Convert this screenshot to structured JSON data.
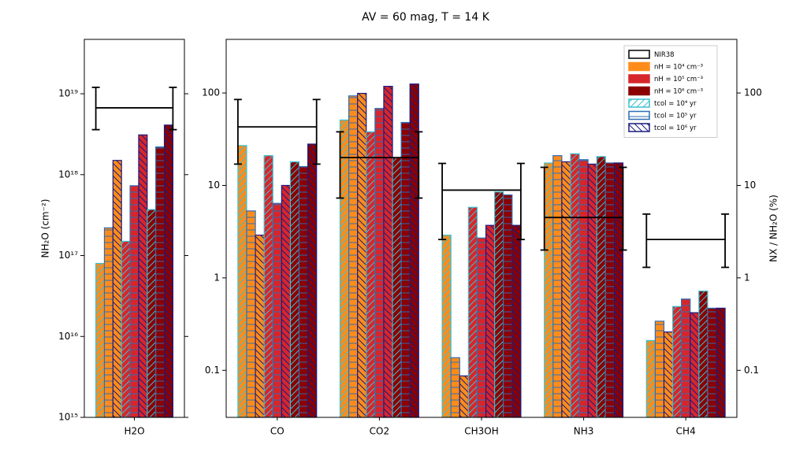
{
  "chart_data": [
    {
      "type": "bar",
      "title": "AV = 60 mag,  T = 14 K",
      "ylabel": "NH₂O  (cm⁻²)",
      "yscale": "log",
      "categories": [
        "H2O"
      ],
      "ylim": [
        1000000000000000.0,
        4.7e+19
      ],
      "yticks": [
        {
          "value": 1000000000000000.0,
          "label": "10¹⁵"
        },
        {
          "value": 1e+16,
          "label": "10¹⁶"
        },
        {
          "value": 1e+17,
          "label": "10¹⁷"
        },
        {
          "value": 1e+18,
          "label": "10¹⁸"
        },
        {
          "value": 1e+19,
          "label": "10¹⁹"
        }
      ],
      "series": [
        {
          "color": "#ff8c1a",
          "edgecolor": "#3cc0d0",
          "hatch": "/",
          "values": [
            8e+16
          ]
        },
        {
          "color": "#ff8c1a",
          "edgecolor": "#2e6db4",
          "hatch": "-",
          "values": [
            2.2e+17
          ]
        },
        {
          "color": "#ff8c1a",
          "edgecolor": "#1a1a80",
          "hatch": "\\",
          "values": [
            1.5e+18
          ]
        },
        {
          "color": "#d7262b",
          "edgecolor": "#3cc0d0",
          "hatch": "/",
          "values": [
            1.5e+17
          ]
        },
        {
          "color": "#d7262b",
          "edgecolor": "#2e6db4",
          "hatch": "-",
          "values": [
            7.3e+17
          ]
        },
        {
          "color": "#d7262b",
          "edgecolor": "#1a1a80",
          "hatch": "\\",
          "values": [
            3.1e+18
          ]
        },
        {
          "color": "#8b0000",
          "edgecolor": "#3cc0d0",
          "hatch": "/",
          "values": [
            3.7e+17
          ]
        },
        {
          "color": "#8b0000",
          "edgecolor": "#2e6db4",
          "hatch": "-",
          "values": [
            2.2e+18
          ]
        },
        {
          "color": "#8b0000",
          "edgecolor": "#1a1a80",
          "hatch": "\\",
          "values": [
            4.1e+18
          ]
        }
      ],
      "observed": {
        "color": "#000000",
        "values": [
          6.7e+18
        ],
        "lower": [
          3.6e+18
        ],
        "upper": [
          1.2e+19
        ]
      }
    },
    {
      "type": "bar",
      "ylabel": "NX / NH₂O  (%)",
      "yscale": "log",
      "categories": [
        "CO",
        "CO2",
        "CH3OH",
        "NH3",
        "CH4"
      ],
      "ylim": [
        0.031,
        380
      ],
      "yticks": [
        0.1,
        1,
        10,
        100
      ],
      "y2lim": [
        0.031,
        380
      ],
      "y2ticks": [
        0.1,
        1,
        10,
        100
      ],
      "series": [
        {
          "color": "#ff8c1a",
          "edgecolor": "#3cc0d0",
          "hatch": "/",
          "values": [
            27,
            51,
            2.9,
            17.5,
            0.21
          ]
        },
        {
          "color": "#ff8c1a",
          "edgecolor": "#2e6db4",
          "hatch": "-",
          "values": [
            5.3,
            93,
            0.137,
            21,
            0.34
          ]
        },
        {
          "color": "#ff8c1a",
          "edgecolor": "#1a1a80",
          "hatch": "\\",
          "values": [
            2.9,
            99,
            0.087,
            18,
            0.26
          ]
        },
        {
          "color": "#d7262b",
          "edgecolor": "#3cc0d0",
          "hatch": "/",
          "values": [
            21,
            38,
            5.8,
            22,
            0.49
          ]
        },
        {
          "color": "#d7262b",
          "edgecolor": "#2e6db4",
          "hatch": "-",
          "values": [
            6.4,
            68,
            2.7,
            19,
            0.59
          ]
        },
        {
          "color": "#d7262b",
          "edgecolor": "#1a1a80",
          "hatch": "\\",
          "values": [
            10,
            118,
            3.7,
            17,
            0.42
          ]
        },
        {
          "color": "#8b0000",
          "edgecolor": "#3cc0d0",
          "hatch": "/",
          "values": [
            18,
            20,
            8.5,
            20.5,
            0.72
          ]
        },
        {
          "color": "#8b0000",
          "edgecolor": "#2e6db4",
          "hatch": "-",
          "values": [
            16,
            48,
            7.9,
            17.5,
            0.47
          ]
        },
        {
          "color": "#8b0000",
          "edgecolor": "#1a1a80",
          "hatch": "\\",
          "values": [
            28,
            125,
            3.7,
            17.5,
            0.47
          ]
        }
      ],
      "observed": {
        "color": "#000000",
        "values": [
          43,
          20,
          8.9,
          4.5,
          2.6
        ],
        "lower": [
          17,
          7.3,
          2.6,
          2.0,
          1.3
        ],
        "upper": [
          85,
          38,
          17.3,
          15.7,
          4.9
        ]
      },
      "legend": {
        "loc": "upper right",
        "entries": [
          {
            "label": "NIR38",
            "facecolor": "#ffffff",
            "edgecolor": "#000000"
          },
          {
            "label": "nH = 10⁴ cm⁻³",
            "facecolor": "#ff8c1a",
            "edgecolor": "#ff8c1a"
          },
          {
            "label": "nH = 10⁵ cm⁻³",
            "facecolor": "#d7262b",
            "edgecolor": "#d7262b"
          },
          {
            "label": "nH = 10⁶ cm⁻³",
            "facecolor": "#8b0000",
            "edgecolor": "#8b0000"
          },
          {
            "label": "tcol = 10⁴ yr",
            "facecolor": "#ffffff",
            "edgecolor": "#3cc0d0",
            "hatch": "/"
          },
          {
            "label": "tcol = 10⁵ yr",
            "facecolor": "#ffffff",
            "edgecolor": "#2e6db4",
            "hatch": "-"
          },
          {
            "label": "tcol = 10⁶ yr",
            "facecolor": "#ffffff",
            "edgecolor": "#1a1a80",
            "hatch": "\\"
          }
        ]
      }
    }
  ]
}
